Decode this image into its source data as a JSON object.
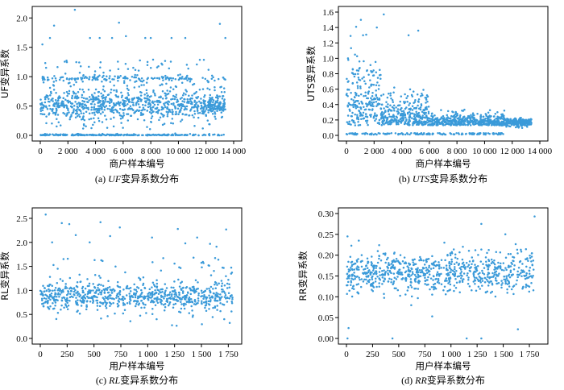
{
  "figure": {
    "panels": [
      {
        "id": "a",
        "caption_prefix": "(a) ",
        "caption_var": "UF",
        "caption_suffix": "变异系数分布"
      },
      {
        "id": "b",
        "caption_prefix": "(b) ",
        "caption_var": "UTS",
        "caption_suffix": "变异系数分布"
      },
      {
        "id": "c",
        "caption_prefix": "(c) ",
        "caption_var": "RL",
        "caption_suffix": "变异系数分布"
      },
      {
        "id": "d",
        "caption_prefix": "(d) ",
        "caption_var": "RR",
        "caption_suffix": "变异系数分布"
      }
    ]
  },
  "chart_data": [
    {
      "type": "scatter",
      "xlabel": "商户样本编号",
      "ylabel": "UF变异系数",
      "xlim": [
        0,
        14000
      ],
      "ylim": [
        0,
        2.1
      ],
      "xticks": [
        0,
        2000,
        4000,
        6000,
        8000,
        10000,
        12000,
        14000
      ],
      "xtick_labels": [
        "0",
        "2 000",
        "4 000",
        "6 000",
        "8 000",
        "10 000",
        "12 000",
        "14 000"
      ],
      "yticks": [
        0,
        0.5,
        1.0,
        1.5,
        2.0
      ],
      "ytick_labels": [
        "0.0",
        "0.5",
        "1.0",
        "1.5",
        "2.0"
      ],
      "n_points": 13400,
      "visible_points_rendered": 1400,
      "outliers": [
        [
          2500,
          2.14
        ],
        [
          5700,
          1.92
        ],
        [
          1000,
          1.87
        ],
        [
          13000,
          1.9
        ],
        [
          6200,
          1.69
        ],
        [
          700,
          1.66
        ],
        [
          3600,
          1.66
        ],
        [
          4300,
          1.66
        ],
        [
          5200,
          1.66
        ],
        [
          7600,
          1.66
        ],
        [
          8000,
          1.66
        ],
        [
          9500,
          1.66
        ],
        [
          10500,
          1.66
        ],
        [
          13400,
          1.66
        ],
        [
          150,
          1.55
        ]
      ],
      "color": "#3a9ad9"
    },
    {
      "type": "scatter",
      "xlabel": "商户样本编号",
      "ylabel": "UTS变异系数",
      "xlim": [
        0,
        14000
      ],
      "ylim": [
        0,
        1.6
      ],
      "xticks": [
        0,
        2000,
        4000,
        6000,
        8000,
        10000,
        12000,
        14000
      ],
      "xtick_labels": [
        "0",
        "2 000",
        "4 000",
        "6 000",
        "8 000",
        "10 000",
        "12 000",
        "14 000"
      ],
      "yticks": [
        0,
        0.2,
        0.4,
        0.6,
        0.8,
        1.0,
        1.2,
        1.4,
        1.6
      ],
      "ytick_labels": [
        "0.0",
        "0.2",
        "0.4",
        "0.6",
        "0.8",
        "1.0",
        "1.2",
        "1.4",
        "1.6"
      ],
      "n_points": 13400,
      "visible_points_rendered": 1400,
      "outliers": [
        [
          2700,
          1.57
        ],
        [
          700,
          1.41
        ],
        [
          5200,
          1.36
        ],
        [
          2200,
          1.4
        ],
        [
          1200,
          1.3
        ],
        [
          300,
          1.29
        ],
        [
          4500,
          1.3
        ]
      ],
      "color": "#3a9ad9"
    },
    {
      "type": "scatter",
      "xlabel": "用户样本编号",
      "ylabel": "RL变异系数",
      "xlim": [
        0,
        1800
      ],
      "ylim": [
        0,
        2.6
      ],
      "xticks": [
        0,
        250,
        500,
        750,
        1000,
        1250,
        1500,
        1750
      ],
      "xtick_labels": [
        "0",
        "250",
        "500",
        "750",
        "1 000",
        "1 250",
        "1 500",
        "1 750"
      ],
      "yticks": [
        0,
        0.5,
        1.0,
        1.5,
        2.0,
        2.5
      ],
      "ytick_labels": [
        "0.0",
        "0.5",
        "1.0",
        "1.5",
        "2.0",
        "2.5"
      ],
      "n_points": 1800,
      "visible_points_rendered": 800,
      "outliers": [
        [
          50,
          2.58
        ],
        [
          560,
          2.42
        ],
        [
          270,
          2.38
        ],
        [
          200,
          2.4
        ],
        [
          740,
          2.31
        ],
        [
          1280,
          2.28
        ],
        [
          1730,
          2.27
        ],
        [
          330,
          2.15
        ],
        [
          110,
          2.0
        ],
        [
          650,
          2.13
        ],
        [
          460,
          2.0
        ],
        [
          1040,
          2.1
        ],
        [
          1460,
          2.1
        ],
        [
          1350,
          1.98
        ],
        [
          1640,
          1.91
        ],
        [
          1580,
          1.97
        ]
      ],
      "color": "#3a9ad9"
    },
    {
      "type": "scatter",
      "xlabel": "用户样本编号",
      "ylabel": "RR变异系数",
      "xlim": [
        0,
        1850
      ],
      "ylim": [
        0,
        0.3
      ],
      "xticks": [
        0,
        250,
        500,
        750,
        1000,
        1250,
        1500,
        1750
      ],
      "xtick_labels": [
        "0",
        "250",
        "500",
        "750",
        "1 000",
        "1 250",
        "1 500",
        "1 750"
      ],
      "yticks": [
        0,
        0.05,
        0.1,
        0.15,
        0.2,
        0.25,
        0.3
      ],
      "ytick_labels": [
        "0.00",
        "0.05",
        "0.10",
        "0.15",
        "0.20",
        "0.25",
        "0.30"
      ],
      "n_points": 1800,
      "visible_points_rendered": 800,
      "outliers": [
        [
          1800,
          0.293
        ],
        [
          1290,
          0.275
        ],
        [
          10,
          0.245
        ],
        [
          1520,
          0.25
        ],
        [
          10,
          0.0
        ],
        [
          440,
          0.0
        ],
        [
          1150,
          0.0
        ],
        [
          1290,
          0.0
        ],
        [
          20,
          0.025
        ],
        [
          1640,
          0.022
        ],
        [
          820,
          0.053
        ],
        [
          620,
          0.08
        ]
      ],
      "color": "#3a9ad9"
    }
  ]
}
